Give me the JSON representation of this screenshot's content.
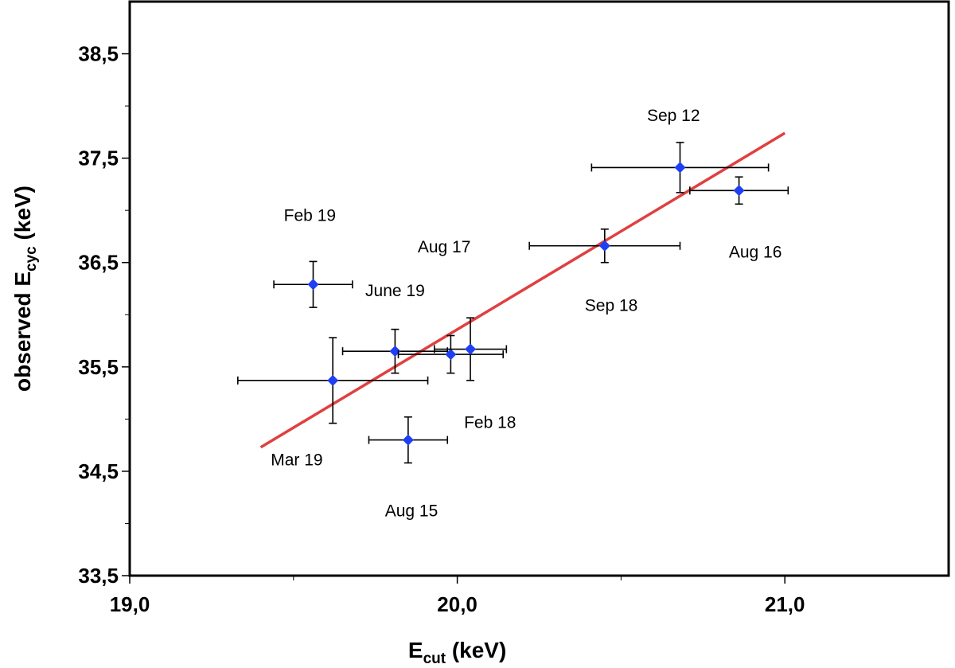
{
  "chart_data": {
    "type": "scatter",
    "xlabel": {
      "main": "E",
      "sub": "cut",
      "unit": "  (keV)"
    },
    "ylabel": {
      "prefix": "observed E",
      "sub": "cyc",
      "unit": " (keV)"
    },
    "xlim": [
      19.0,
      21.5
    ],
    "ylim": [
      33.5,
      39.0
    ],
    "x_ticks": [
      19.0,
      20.0,
      21.0
    ],
    "x_tick_labels": [
      "19,0",
      "20,0",
      "21,0"
    ],
    "x_minor_ticks": [
      19.5,
      20.5
    ],
    "y_ticks": [
      33.5,
      34.5,
      35.5,
      36.5,
      37.5,
      38.5
    ],
    "y_tick_labels": [
      "33,5",
      "34,5",
      "35,5",
      "36,5",
      "37,5",
      "38,5"
    ],
    "y_minor_ticks": [
      34.0,
      35.0,
      36.0,
      37.0,
      38.0
    ],
    "grid": false,
    "marker_color": "#1f3ff2",
    "fit_color": "#e04040",
    "points": [
      {
        "x": 19.56,
        "y": 36.29,
        "xerr": 0.12,
        "yerr": 0.22
      },
      {
        "x": 19.62,
        "y": 35.37,
        "xerr": 0.29,
        "yerr": 0.41
      },
      {
        "x": 19.81,
        "y": 35.65,
        "xerr": 0.16,
        "yerr": 0.21
      },
      {
        "x": 19.85,
        "y": 34.8,
        "xerr": 0.12,
        "yerr": 0.22
      },
      {
        "x": 19.98,
        "y": 35.62,
        "xerr": 0.16,
        "yerr": 0.18
      },
      {
        "x": 20.04,
        "y": 35.67,
        "xerr": 0.11,
        "yerr": 0.3
      },
      {
        "x": 20.45,
        "y": 36.66,
        "xerr": 0.23,
        "yerr": 0.16
      },
      {
        "x": 20.68,
        "y": 37.41,
        "xerr": 0.27,
        "yerr": 0.24
      },
      {
        "x": 20.86,
        "y": 37.19,
        "xerr": 0.15,
        "yerr": 0.13
      }
    ],
    "fit_line": {
      "x": [
        19.4,
        21.0
      ],
      "y": [
        34.73,
        37.74
      ]
    },
    "annotations": [
      {
        "text": "Sep 12",
        "x": 20.66,
        "y": 37.91
      },
      {
        "text": "Feb 19",
        "x": 19.55,
        "y": 36.95
      },
      {
        "text": "Aug 17",
        "x": 19.96,
        "y": 36.65
      },
      {
        "text": "Aug 16",
        "x": 20.91,
        "y": 36.6
      },
      {
        "text": "June 19",
        "x": 19.81,
        "y": 36.23
      },
      {
        "text": "Sep 18",
        "x": 20.47,
        "y": 36.09
      },
      {
        "text": "Feb 18",
        "x": 20.1,
        "y": 34.97
      },
      {
        "text": "Mar 19",
        "x": 19.51,
        "y": 34.61
      },
      {
        "text": "Aug 15",
        "x": 19.86,
        "y": 34.12
      }
    ]
  }
}
